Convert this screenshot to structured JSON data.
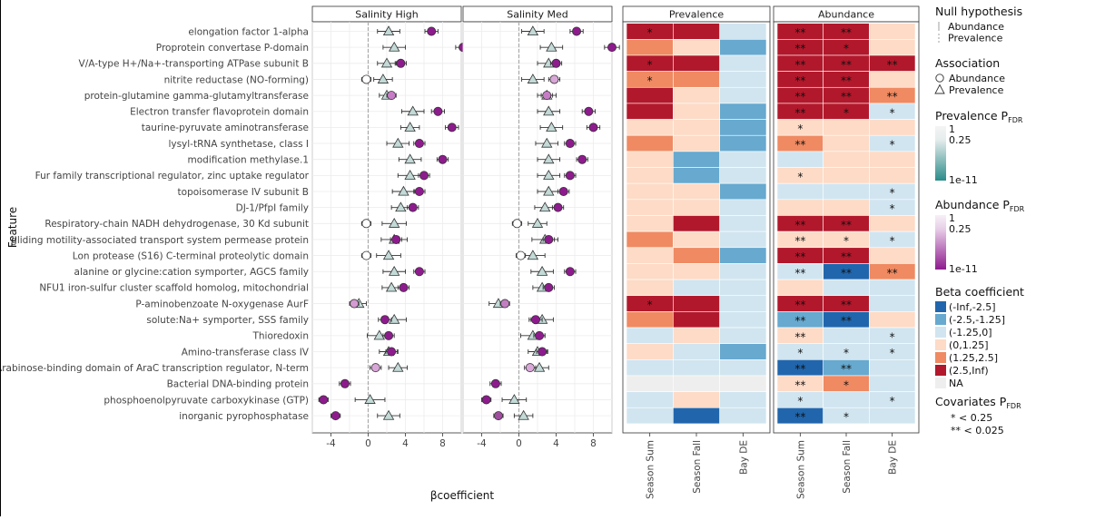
{
  "chart_data": {
    "type": "composite",
    "features": [
      "elongation factor 1-alpha",
      "Proprotein convertase P-domain",
      "V/A-type H+/Na+-transporting ATPase subunit B",
      "nitrite reductase (NO-forming)",
      "protein-glutamine gamma-glutamyltransferase",
      "Electron transfer flavoprotein domain",
      "taurine-pyruvate aminotransferase",
      "lysyl-tRNA synthetase, class I",
      "modification methylase.1",
      "Fur family transcriptional regulator, zinc uptake regulator",
      "topoisomerase IV subunit B",
      "DJ-1/PfpI family",
      "Respiratory-chain NADH dehydrogenase, 30 Kd subunit",
      "gliding motility-associated transport system permease protein",
      "Lon protease (S16) C-terminal proteolytic domain",
      "alanine or glycine:cation symporter, AGCS family",
      "NFU1 iron-sulfur cluster scaffold homolog, mitochondrial",
      "P-aminobenzoate N-oxygenase AurF",
      "solute:Na+ symporter, SSS family",
      "Thioredoxin",
      "Amino-transferase class IV",
      "Arabinose-binding domain of AraC transcription regulator, N-term",
      "Bacterial DNA-binding protein",
      "phosphoenolpyruvate carboxykinase (GTP)",
      "inorganic pyrophosphatase"
    ],
    "ylabel": "Feature",
    "xlabel": "βcoefficient",
    "forest": {
      "panels": [
        "Salinity High",
        "Salinity Med"
      ],
      "xlim": [
        -6,
        10
      ],
      "xticks": [
        -4,
        0,
        4,
        8
      ],
      "grid": true,
      "salinity_high": {
        "prevalence": [
          [
            2.2,
            1.2
          ],
          [
            2.8,
            1.2
          ],
          [
            2.0,
            1.0
          ],
          [
            1.6,
            1.0
          ],
          [
            2.0,
            0.8
          ],
          [
            4.8,
            1.2
          ],
          [
            4.5,
            1.0
          ],
          [
            3.2,
            1.2
          ],
          [
            4.5,
            1.2
          ],
          [
            4.5,
            1.3
          ],
          [
            3.8,
            1.2
          ],
          [
            3.5,
            1.0
          ],
          [
            2.8,
            1.3
          ],
          [
            2.8,
            1.4
          ],
          [
            2.2,
            1.3
          ],
          [
            2.8,
            1.2
          ],
          [
            2.5,
            1.0
          ],
          [
            -1.0,
            0.8
          ],
          [
            2.8,
            1.3
          ],
          [
            1.2,
            1.3
          ],
          [
            2.2,
            1.0
          ],
          [
            3.2,
            1.0
          ],
          [
            null,
            null
          ],
          [
            0.2,
            1.6
          ],
          [
            2.2,
            1.2
          ]
        ],
        "abundance": [
          [
            6.8,
            0.7
          ],
          [
            10.2,
            0.8
          ],
          [
            3.5,
            0.6
          ],
          [
            -0.2,
            0.5
          ],
          [
            2.5,
            0.5
          ],
          [
            7.5,
            0.7
          ],
          [
            9.0,
            0.7
          ],
          [
            5.5,
            0.6
          ],
          [
            8.0,
            0.6
          ],
          [
            6.0,
            0.6
          ],
          [
            5.5,
            0.6
          ],
          [
            4.8,
            0.6
          ],
          [
            -0.2,
            0.5
          ],
          [
            3.0,
            0.6
          ],
          [
            -0.2,
            0.5
          ],
          [
            5.5,
            0.6
          ],
          [
            3.8,
            0.6
          ],
          [
            -1.5,
            0.5
          ],
          [
            1.8,
            0.7
          ],
          [
            2.2,
            0.6
          ],
          [
            2.5,
            0.6
          ],
          [
            0.8,
            0.6
          ],
          [
            -2.5,
            0.6
          ],
          [
            -4.8,
            0.5
          ],
          [
            -3.5,
            0.5
          ]
        ]
      },
      "salinity_med": {
        "prevalence": [
          [
            1.5,
            1.2
          ],
          [
            3.5,
            1.2
          ],
          [
            3.2,
            1.2
          ],
          [
            1.5,
            1.2
          ],
          [
            3.0,
            1.0
          ],
          [
            3.2,
            1.2
          ],
          [
            3.5,
            1.2
          ],
          [
            3.0,
            1.2
          ],
          [
            3.2,
            1.2
          ],
          [
            3.2,
            1.2
          ],
          [
            3.2,
            1.2
          ],
          [
            2.8,
            1.1
          ],
          [
            2.0,
            1.0
          ],
          [
            2.8,
            1.4
          ],
          [
            1.5,
            1.3
          ],
          [
            2.5,
            1.2
          ],
          [
            2.5,
            1.0
          ],
          [
            -2.2,
            1.0
          ],
          [
            2.5,
            1.2
          ],
          [
            1.5,
            1.3
          ],
          [
            2.0,
            1.0
          ],
          [
            2.2,
            1.0
          ],
          [
            null,
            null
          ],
          [
            -0.5,
            1.3
          ],
          [
            0.5,
            1.0
          ]
        ],
        "abundance": [
          [
            6.2,
            0.7
          ],
          [
            10.0,
            0.8
          ],
          [
            4.0,
            0.6
          ],
          [
            3.8,
            0.6
          ],
          [
            3.0,
            0.6
          ],
          [
            7.5,
            0.7
          ],
          [
            8.0,
            0.7
          ],
          [
            5.5,
            0.6
          ],
          [
            6.8,
            0.6
          ],
          [
            5.5,
            0.6
          ],
          [
            4.8,
            0.6
          ],
          [
            4.2,
            0.6
          ],
          [
            -0.2,
            0.5
          ],
          [
            3.2,
            0.6
          ],
          [
            0.2,
            0.5
          ],
          [
            5.5,
            0.6
          ],
          [
            3.2,
            0.6
          ],
          [
            -1.5,
            0.5
          ],
          [
            1.8,
            0.7
          ],
          [
            2.2,
            0.6
          ],
          [
            2.5,
            0.6
          ],
          [
            1.2,
            0.6
          ],
          [
            -2.5,
            0.6
          ],
          [
            -3.5,
            0.5
          ],
          [
            -2.2,
            0.5
          ]
        ]
      },
      "abundance_fill_high": [
        "#8e1b8e",
        "#8e1b8e",
        "#8e1b8e",
        "#ffffff",
        "#c77cc6",
        "#8e1b8e",
        "#8e1b8e",
        "#8e1b8e",
        "#8e1b8e",
        "#8e1b8e",
        "#8e1b8e",
        "#8e1b8e",
        "#ffffff",
        "#8e1b8e",
        "#ffffff",
        "#8e1b8e",
        "#8e1b8e",
        "#d49bd3",
        "#8e1b8e",
        "#8e1b8e",
        "#8e1b8e",
        "#d8a6d7",
        "#8e1b8e",
        "#8e1b8e",
        "#8e1b8e"
      ],
      "abundance_fill_med": [
        "#8e1b8e",
        "#8e1b8e",
        "#8e1b8e",
        "#d9a6d8",
        "#c77cc6",
        "#8e1b8e",
        "#8e1b8e",
        "#8e1b8e",
        "#8e1b8e",
        "#8e1b8e",
        "#8e1b8e",
        "#8e1b8e",
        "#ffffff",
        "#8e1b8e",
        "#ffffff",
        "#8e1b8e",
        "#8e1b8e",
        "#c37ec2",
        "#8e1b8e",
        "#8e1b8e",
        "#8e1b8e",
        "#dba8da",
        "#8e1b8e",
        "#8e1b8e",
        "#a04da0"
      ],
      "prevalence_fill": "#c3dad7"
    },
    "heatmap": {
      "panels": [
        "Prevalence",
        "Abundance"
      ],
      "columns": [
        "Season Sum",
        "Season Fall",
        "Bay DE"
      ],
      "category_order": [
        "(-Inf,-2.5]",
        "(-2.5,-1.25]",
        "(-1.25,0]",
        "(0,1.25]",
        "(1.25,2.5]",
        "(2.5,Inf)",
        "NA"
      ],
      "prevalence": [
        [
          5,
          5,
          2
        ],
        [
          4,
          3,
          1
        ],
        [
          5,
          5,
          2
        ],
        [
          4,
          4,
          2
        ],
        [
          5,
          3,
          2
        ],
        [
          5,
          3,
          1
        ],
        [
          3,
          3,
          1
        ],
        [
          4,
          3,
          1
        ],
        [
          3,
          1,
          2
        ],
        [
          3,
          1,
          2
        ],
        [
          3,
          3,
          1
        ],
        [
          3,
          3,
          2
        ],
        [
          3,
          5,
          2
        ],
        [
          4,
          3,
          2
        ],
        [
          3,
          4,
          1
        ],
        [
          3,
          3,
          2
        ],
        [
          3,
          2,
          2
        ],
        [
          5,
          5,
          2
        ],
        [
          4,
          5,
          2
        ],
        [
          2,
          3,
          2
        ],
        [
          3,
          2,
          1
        ],
        [
          2,
          2,
          2
        ],
        [
          6,
          6,
          6
        ],
        [
          2,
          3,
          2
        ],
        [
          2,
          0,
          2
        ]
      ],
      "abundance": [
        [
          5,
          5,
          3
        ],
        [
          5,
          5,
          3
        ],
        [
          5,
          5,
          5
        ],
        [
          5,
          5,
          3
        ],
        [
          5,
          5,
          4
        ],
        [
          5,
          5,
          2
        ],
        [
          3,
          3,
          3
        ],
        [
          4,
          3,
          2
        ],
        [
          2,
          3,
          3
        ],
        [
          3,
          3,
          3
        ],
        [
          2,
          2,
          2
        ],
        [
          3,
          3,
          2
        ],
        [
          5,
          5,
          3
        ],
        [
          3,
          3,
          2
        ],
        [
          5,
          5,
          3
        ],
        [
          2,
          0,
          4
        ],
        [
          3,
          2,
          2
        ],
        [
          5,
          5,
          2
        ],
        [
          1,
          0,
          3
        ],
        [
          3,
          2,
          2
        ],
        [
          2,
          2,
          2
        ],
        [
          0,
          1,
          2
        ],
        [
          3,
          4,
          2
        ],
        [
          2,
          2,
          2
        ],
        [
          0,
          2,
          2
        ]
      ],
      "prevalence_stars": [
        [
          "*",
          "",
          ""
        ],
        [
          "",
          "",
          ""
        ],
        [
          "*",
          "",
          ""
        ],
        [
          "*",
          "",
          ""
        ],
        [
          "",
          "",
          ""
        ],
        [
          "",
          "",
          ""
        ],
        [
          "",
          "",
          ""
        ],
        [
          "",
          "",
          ""
        ],
        [
          "",
          "",
          ""
        ],
        [
          "",
          "",
          ""
        ],
        [
          "",
          "",
          ""
        ],
        [
          "",
          "",
          ""
        ],
        [
          "",
          "",
          ""
        ],
        [
          "",
          "",
          ""
        ],
        [
          "",
          "",
          ""
        ],
        [
          "",
          "",
          ""
        ],
        [
          "",
          "",
          ""
        ],
        [
          "*",
          "",
          ""
        ],
        [
          "",
          "",
          ""
        ],
        [
          "",
          "",
          ""
        ],
        [
          "",
          "",
          ""
        ],
        [
          "",
          "",
          ""
        ],
        [
          "",
          "",
          ""
        ],
        [
          "",
          "",
          ""
        ],
        [
          "",
          "",
          ""
        ]
      ],
      "abundance_stars": [
        [
          "**",
          "**",
          ""
        ],
        [
          "**",
          "*",
          ""
        ],
        [
          "**",
          "**",
          "**"
        ],
        [
          "**",
          "**",
          ""
        ],
        [
          "**",
          "**",
          "**"
        ],
        [
          "**",
          "*",
          "*"
        ],
        [
          "*",
          "",
          ""
        ],
        [
          "**",
          "",
          "*"
        ],
        [
          "",
          "",
          ""
        ],
        [
          "*",
          "",
          ""
        ],
        [
          "",
          "",
          "*"
        ],
        [
          "",
          "",
          "*"
        ],
        [
          "**",
          "**",
          ""
        ],
        [
          "**",
          "*",
          "*"
        ],
        [
          "**",
          "**",
          ""
        ],
        [
          "**",
          "**",
          "**"
        ],
        [
          "",
          "",
          ""
        ],
        [
          "**",
          "**",
          ""
        ],
        [
          "**",
          "**",
          ""
        ],
        [
          "**",
          "",
          "*"
        ],
        [
          "*",
          "*",
          "*"
        ],
        [
          "**",
          "**",
          ""
        ],
        [
          "**",
          "*",
          ""
        ],
        [
          "*",
          "",
          "*"
        ],
        [
          "**",
          "*",
          ""
        ]
      ]
    },
    "colors": {
      "neg_inf": "#2166ac",
      "neg_mid": "#67a9cf",
      "neg_low": "#d1e5f0",
      "pos_low": "#fddbc7",
      "pos_mid": "#ef8a62",
      "pos_high": "#b2182b",
      "na": "#eeeeee"
    },
    "legend": {
      "null_hypothesis_title": "Null hypothesis",
      "null_items": [
        "Abundance",
        "Prevalence"
      ],
      "association_title": "Association",
      "association_items": [
        "Abundance",
        "Prevalence"
      ],
      "prev_fdr_title": "Prevalence P",
      "prev_fdr_sub": "FDR",
      "prev_fdr_ticks": [
        "1",
        "0.25",
        "1e-11"
      ],
      "abund_fdr_title": "Abundance P",
      "abund_fdr_sub": "FDR",
      "abund_fdr_ticks": [
        "1",
        "0.25",
        "1e-11"
      ],
      "beta_title": "Beta coefficient",
      "beta_items": [
        "(-Inf,-2.5]",
        "(-2.5,-1.25]",
        "(-1.25,0]",
        "(0,1.25]",
        "(1.25,2.5]",
        "(2.5,Inf)",
        "NA"
      ],
      "cov_title": "Covariates P",
      "cov_sub": "FDR",
      "cov_items": [
        "* < 0.25",
        "** < 0.025"
      ]
    }
  }
}
